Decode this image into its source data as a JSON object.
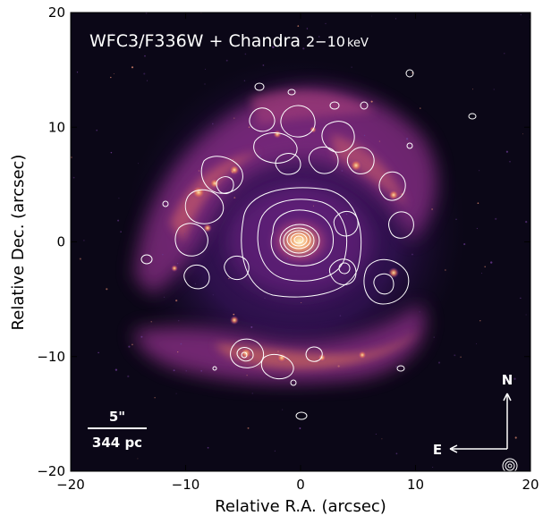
{
  "figure": {
    "title_main": "WFC3/F336W + Chandra ",
    "title_band": "2−10",
    "title_unit": "keV",
    "xlabel": "Relative R.A. (arcsec)",
    "ylabel": "Relative Dec. (arcsec)",
    "scalebar_angular": "5\"",
    "scalebar_physical": "344 pc",
    "compass_north": "N",
    "compass_east": "E",
    "xlim": [
      -20,
      20
    ],
    "ylim": [
      -20,
      20
    ],
    "xticks": [
      {
        "value": -20,
        "label": "−20"
      },
      {
        "value": -10,
        "label": "−10"
      },
      {
        "value": 0,
        "label": "0"
      },
      {
        "value": 10,
        "label": "10"
      },
      {
        "value": 20,
        "label": "20"
      }
    ],
    "yticks": [
      {
        "value": -20,
        "label": "−20"
      },
      {
        "value": -10,
        "label": "−10"
      },
      {
        "value": 0,
        "label": "0"
      },
      {
        "value": 10,
        "label": "10"
      },
      {
        "value": 20,
        "label": "20"
      }
    ],
    "colors": {
      "background": "#0b0717",
      "glow_outer": "#3a1460",
      "glow_mid": "#7a2a8e",
      "glow_bright": "#d06a5a",
      "glow_peak": "#ffd27a",
      "contours": "#ffffff",
      "annotation_text": "#ffffff"
    }
  }
}
